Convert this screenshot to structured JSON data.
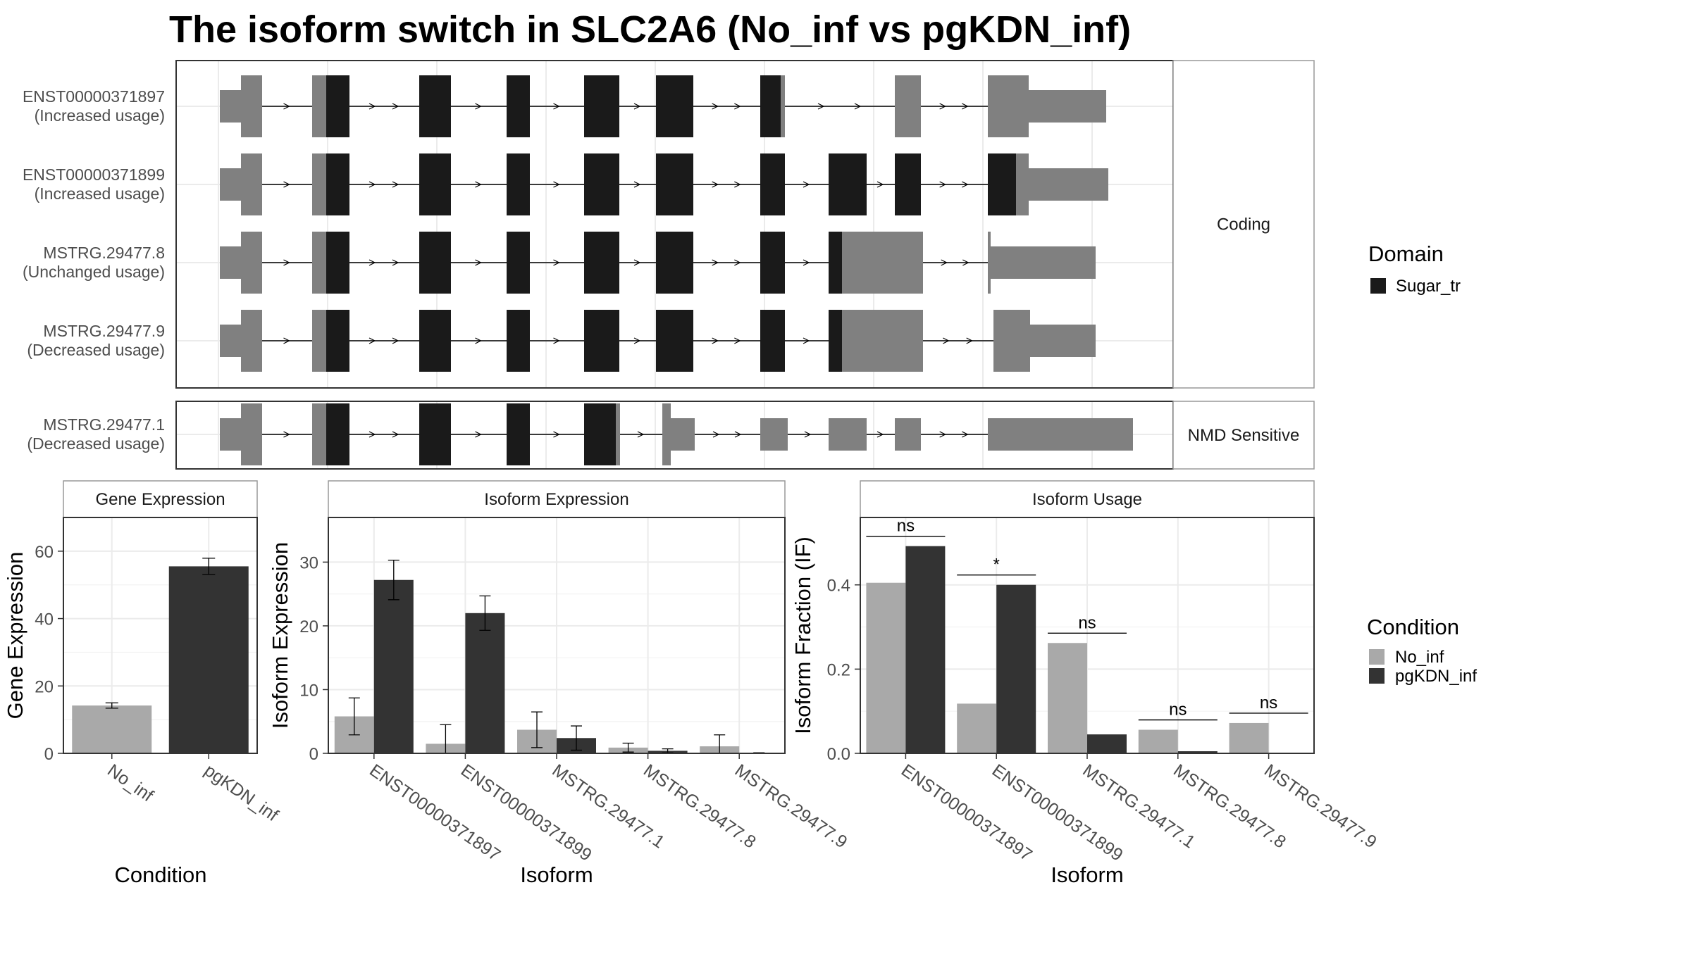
{
  "title": "The isoform switch in SLC2A6 (No_inf vs pgKDN_inf)",
  "colors": {
    "domain": "#1a1a1a",
    "nondomain": "#808080",
    "no_inf": "#a9a9a9",
    "pgkdn_inf": "#333333",
    "grid": "#ebebeb",
    "border": "#333333"
  },
  "transcript_panel": {
    "groups": [
      {
        "label": "Coding",
        "rows": [
          0,
          1,
          2,
          3
        ]
      },
      {
        "label": "NMD Sensitive",
        "rows": [
          4
        ]
      }
    ],
    "transcripts": [
      {
        "id": "ENST00000371897",
        "usage": "(Increased usage)"
      },
      {
        "id": "ENST00000371899",
        "usage": "(Increased usage)"
      },
      {
        "id": "MSTRG.29477.8",
        "usage": "(Unchanged usage)"
      },
      {
        "id": "MSTRG.29477.9",
        "usage": "(Decreased usage)"
      },
      {
        "id": "MSTRG.29477.1",
        "usage": "(Decreased usage)"
      }
    ]
  },
  "legend_domain": {
    "title": "Domain",
    "items": [
      {
        "label": "Sugar_tr",
        "color": "#1a1a1a"
      }
    ]
  },
  "legend_condition": {
    "title": "Condition",
    "items": [
      {
        "label": "No_inf",
        "color": "#a9a9a9"
      },
      {
        "label": "pgKDN_inf",
        "color": "#333333"
      }
    ]
  },
  "chart_data": [
    {
      "type": "bar",
      "title": "Gene Expression",
      "xlabel": "Condition",
      "ylabel": "Gene Expression",
      "categories": [
        "No_inf",
        "pgKDN_inf"
      ],
      "values": [
        14.2,
        55.5
      ],
      "error": [
        0.8,
        2.4
      ],
      "ylim": [
        0,
        70
      ],
      "yticks": [
        0,
        20,
        40,
        60
      ]
    },
    {
      "type": "bar",
      "title": "Isoform Expression",
      "xlabel": "Isoform",
      "ylabel": "Isoform Expression",
      "categories": [
        "ENST00000371897",
        "ENST00000371899",
        "MSTRG.29477.1",
        "MSTRG.29477.8",
        "MSTRG.29477.9"
      ],
      "series": [
        {
          "name": "No_inf",
          "values": [
            5.8,
            1.5,
            3.7,
            0.9,
            1.1
          ],
          "error": [
            2.9,
            3.0,
            2.8,
            0.7,
            1.8
          ]
        },
        {
          "name": "pgKDN_inf",
          "values": [
            27.2,
            22.0,
            2.4,
            0.4,
            0.0
          ],
          "error": [
            3.1,
            2.7,
            1.9,
            0.3,
            0.1
          ]
        }
      ],
      "ylim": [
        0,
        37
      ],
      "yticks": [
        0,
        10,
        20,
        30
      ]
    },
    {
      "type": "bar",
      "title": "Isoform Usage",
      "xlabel": "Isoform",
      "ylabel": "Isoform Fraction (IF)",
      "categories": [
        "ENST00000371897",
        "ENST00000371899",
        "MSTRG.29477.1",
        "MSTRG.29477.8",
        "MSTRG.29477.9"
      ],
      "series": [
        {
          "name": "No_inf",
          "values": [
            0.405,
            0.118,
            0.262,
            0.056,
            0.072
          ]
        },
        {
          "name": "pgKDN_inf",
          "values": [
            0.492,
            0.4,
            0.045,
            0.005,
            0.0
          ]
        }
      ],
      "significance": [
        "ns",
        "*",
        "ns",
        "ns",
        "ns"
      ],
      "ylim": [
        0,
        0.56
      ],
      "yticks": [
        0.0,
        0.2,
        0.4
      ]
    }
  ]
}
